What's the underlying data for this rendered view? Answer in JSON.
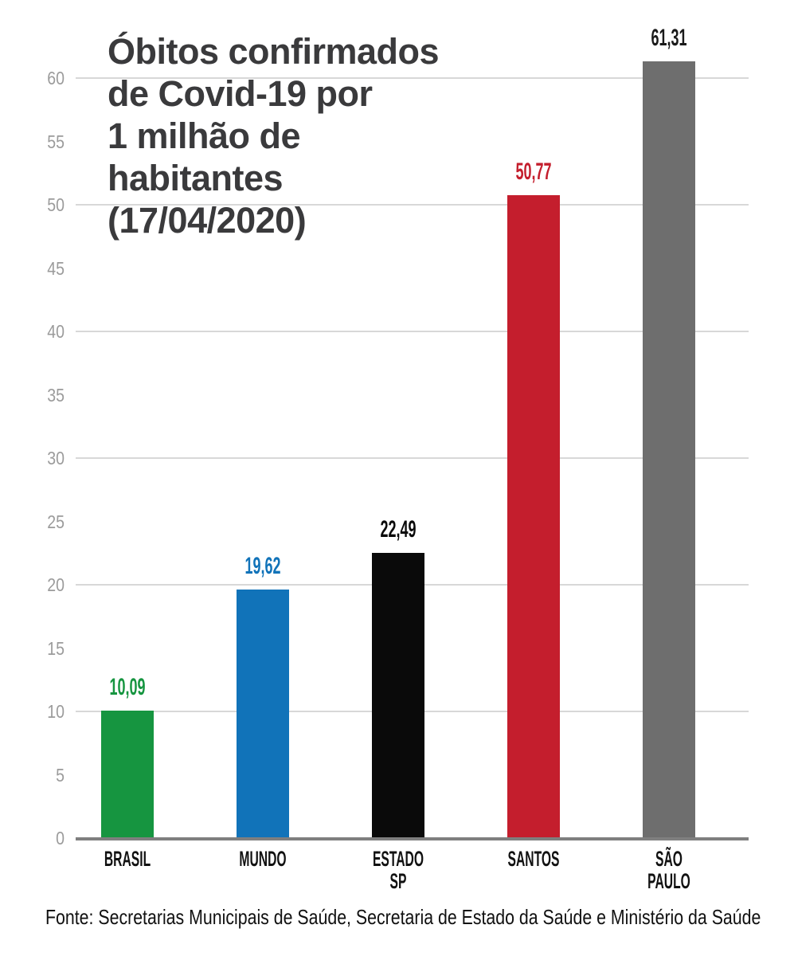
{
  "title": {
    "text": "Óbitos confirmados\nde Covid-19 por\n1 milhão de\nhabitantes\n(17/04/2020)",
    "color": "#3a3a3c"
  },
  "footer": {
    "text": "Fonte: Secretarias Municipais de Saúde, Secretaria de Estado da Saúde e Ministério da Saúde"
  },
  "chart_data": {
    "type": "bar",
    "title": "Óbitos confirmados de Covid-19 por 1 milhão de habitantes (17/04/2020)",
    "xlabel": "",
    "ylabel": "",
    "categories": [
      "BRASIL",
      "MUNDO",
      "ESTADO\nSP",
      "SANTOS",
      "SÃO\nPAULO"
    ],
    "values": [
      10.09,
      19.62,
      22.49,
      50.77,
      61.31
    ],
    "value_labels": [
      "10,09",
      "19,62",
      "22,49",
      "50,77",
      "61,31"
    ],
    "bar_colors": [
      "#169540",
      "#1173b9",
      "#0a0a0a",
      "#c41e2d",
      "#6e6e6e"
    ],
    "value_label_colors": [
      "#169540",
      "#1173b9",
      "#0a0a0a",
      "#c41e2d",
      "#1a1a1a"
    ],
    "ylim": [
      0,
      60
    ],
    "ytick_labels": [
      0,
      5,
      10,
      15,
      20,
      25,
      30,
      35,
      40,
      45,
      50,
      55,
      60
    ],
    "grid_values": [
      10,
      20,
      30,
      40,
      50,
      60
    ],
    "grid": true,
    "legend": false,
    "colors": {
      "gridline": "#d8d8d8",
      "axis_line": "#7f7f7f",
      "tick_label": "#9b9b9b",
      "category_label": "#111111"
    }
  }
}
